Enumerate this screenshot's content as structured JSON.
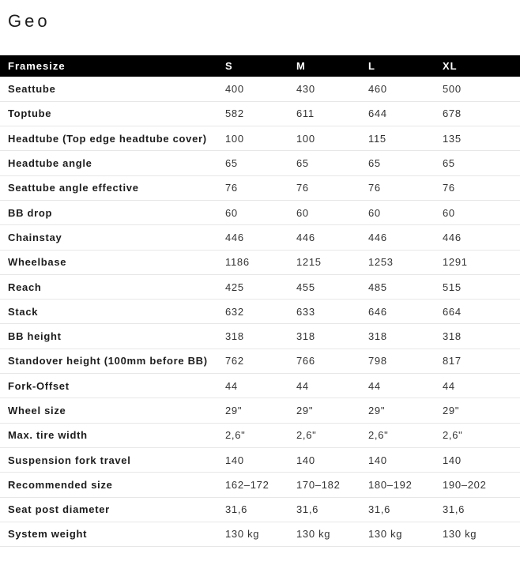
{
  "page": {
    "title": "Geo"
  },
  "table": {
    "columns": [
      "Framesize",
      "S",
      "M",
      "L",
      "XL"
    ],
    "rows": [
      {
        "label": "Seattube",
        "values": [
          "400",
          "430",
          "460",
          "500"
        ]
      },
      {
        "label": "Toptube",
        "values": [
          "582",
          "611",
          "644",
          "678"
        ]
      },
      {
        "label": "Headtube (Top edge headtube cover)",
        "values": [
          "100",
          "100",
          "115",
          "135"
        ]
      },
      {
        "label": "Headtube angle",
        "values": [
          "65",
          "65",
          "65",
          "65"
        ]
      },
      {
        "label": "Seattube angle effective",
        "values": [
          "76",
          "76",
          "76",
          "76"
        ]
      },
      {
        "label": "BB drop",
        "values": [
          "60",
          "60",
          "60",
          "60"
        ]
      },
      {
        "label": "Chainstay",
        "values": [
          "446",
          "446",
          "446",
          "446"
        ]
      },
      {
        "label": "Wheelbase",
        "values": [
          "1186",
          "1215",
          "1253",
          "1291"
        ]
      },
      {
        "label": "Reach",
        "values": [
          "425",
          "455",
          "485",
          "515"
        ]
      },
      {
        "label": "Stack",
        "values": [
          "632",
          "633",
          "646",
          "664"
        ]
      },
      {
        "label": "BB height",
        "values": [
          "318",
          "318",
          "318",
          "318"
        ]
      },
      {
        "label": "Standover height (100mm before BB)",
        "values": [
          "762",
          "766",
          "798",
          "817"
        ]
      },
      {
        "label": "Fork-Offset",
        "values": [
          "44",
          "44",
          "44",
          "44"
        ]
      },
      {
        "label": "Wheel size",
        "values": [
          "29\"",
          "29\"",
          "29\"",
          "29\""
        ]
      },
      {
        "label": "Max. tire width",
        "values": [
          "2,6\"",
          "2,6\"",
          "2,6\"",
          "2,6\""
        ]
      },
      {
        "label": "Suspension fork travel",
        "values": [
          "140",
          "140",
          "140",
          "140"
        ]
      },
      {
        "label": "Recommended size",
        "values": [
          "162–172",
          "170–182",
          "180–192",
          "190–202"
        ]
      },
      {
        "label": "Seat post diameter",
        "values": [
          "31,6",
          "31,6",
          "31,6",
          "31,6"
        ]
      },
      {
        "label": "System weight",
        "values": [
          "130 kg",
          "130 kg",
          "130 kg",
          "130 kg"
        ]
      }
    ]
  },
  "colors": {
    "header_background": "#000000",
    "header_text": "#ffffff",
    "label_text": "#1c1c1c",
    "value_text": "#333333",
    "divider": "#e7e7e7",
    "page_background": "#ffffff"
  }
}
